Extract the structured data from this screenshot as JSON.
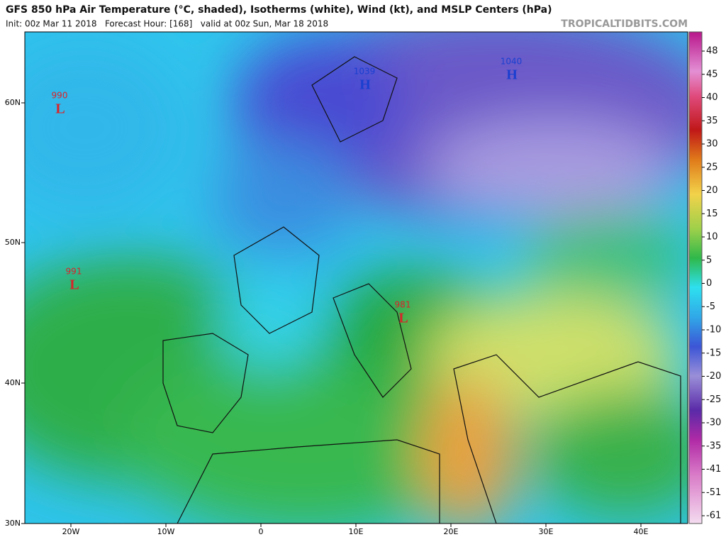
{
  "header": {
    "title": "GFS 850 hPa Air Temperature (°C, shaded), Isotherms (white), Wind (kt), and MSLP Centers (hPa)",
    "subtitle": "Init: 00z Mar 11 2018   Forecast Hour: [168]   valid at 00z Sun, Mar 18 2018",
    "site": "TROPICALTIDBITS.COM"
  },
  "map": {
    "lat_labels": [
      "60N",
      "50N",
      "40N",
      "30N"
    ],
    "lon_labels": [
      "20W",
      "10W",
      "0",
      "10E",
      "20E",
      "30E",
      "40E"
    ],
    "centers": [
      {
        "value": "990",
        "letter": "L"
      },
      {
        "value": "991",
        "letter": "L"
      },
      {
        "value": "1039",
        "letter": "H"
      },
      {
        "value": "1040",
        "letter": "H"
      },
      {
        "value": "981",
        "letter": "L"
      }
    ]
  },
  "colorbar": {
    "labels": [
      48,
      45,
      40,
      35,
      30,
      25,
      20,
      15,
      10,
      5,
      0,
      -5,
      -10,
      -15,
      -20,
      -25,
      -30,
      -35,
      -41,
      -51,
      -61
    ]
  }
}
